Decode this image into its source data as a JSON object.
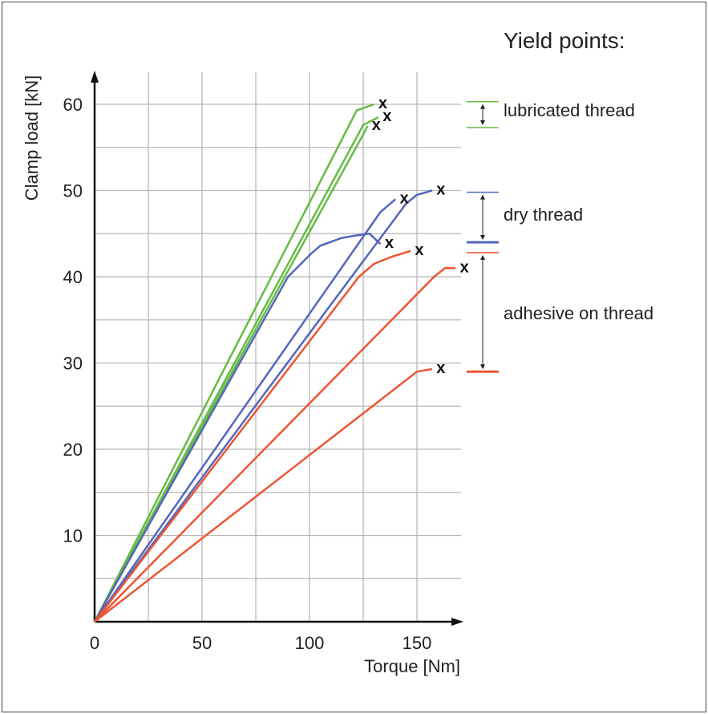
{
  "chart_data": {
    "type": "line",
    "title": "",
    "xlabel": "Torque [Nm]",
    "ylabel": "Clamp load [kN]",
    "xlim": [
      0,
      170
    ],
    "ylim": [
      0,
      63
    ],
    "x_ticks": [
      0,
      50,
      100,
      150
    ],
    "y_ticks": [
      10,
      20,
      30,
      40,
      50,
      60
    ],
    "x_grid_step": 25,
    "y_grid_step": 5,
    "grid": true,
    "yield_marker": "x",
    "series": [
      {
        "group": "lubricated thread",
        "color": "#66bb44",
        "points": [
          [
            0,
            0
          ],
          [
            122,
            59.3
          ],
          [
            130,
            60
          ]
        ]
      },
      {
        "group": "lubricated thread",
        "color": "#66bb44",
        "points": [
          [
            0,
            0
          ],
          [
            125,
            57.6
          ],
          [
            132,
            58.5
          ]
        ]
      },
      {
        "group": "lubricated thread",
        "color": "#66bb44",
        "points": [
          [
            0,
            0
          ],
          [
            125,
            56.5
          ],
          [
            127,
            57.5
          ]
        ]
      },
      {
        "group": "dry thread",
        "color": "#5566bb",
        "points": [
          [
            0,
            0
          ],
          [
            90,
            40
          ],
          [
            96,
            41.5
          ],
          [
            100,
            42.5
          ],
          [
            105,
            43.6
          ],
          [
            115,
            44.5
          ],
          [
            122,
            44.8
          ],
          [
            128,
            45
          ],
          [
            133,
            43.8
          ]
        ]
      },
      {
        "group": "dry thread",
        "color": "#5566bb",
        "points": [
          [
            0,
            0
          ],
          [
            133,
            47.5
          ],
          [
            140,
            49
          ]
        ]
      },
      {
        "group": "dry thread",
        "color": "#5566bb",
        "points": [
          [
            0,
            0
          ],
          [
            145,
            48.5
          ],
          [
            150,
            49.5
          ],
          [
            157,
            50
          ]
        ]
      },
      {
        "group": "adhesive on thread",
        "color": "#ee5533",
        "points": [
          [
            0,
            0
          ],
          [
            123,
            40
          ],
          [
            130,
            41.5
          ],
          [
            138,
            42.3
          ],
          [
            147,
            43
          ]
        ]
      },
      {
        "group": "adhesive on thread",
        "color": "#ee5533",
        "points": [
          [
            0,
            0
          ],
          [
            158,
            40
          ],
          [
            163,
            41
          ],
          [
            168,
            41
          ]
        ]
      },
      {
        "group": "adhesive on thread",
        "color": "#ee5533",
        "points": [
          [
            0,
            0
          ],
          [
            150,
            29
          ],
          [
            157,
            29.3
          ]
        ]
      }
    ],
    "yield_points": {
      "title": "Yield points:",
      "groups": [
        {
          "label": "lubricated thread",
          "color": "#66bb44",
          "range": [
            57.3,
            60.3
          ]
        },
        {
          "label": "dry thread",
          "color": "#5566bb",
          "range": [
            44,
            49.8
          ]
        },
        {
          "label": "adhesive on thread",
          "color": "#ee5533",
          "range": [
            29,
            42.8
          ]
        }
      ]
    }
  }
}
